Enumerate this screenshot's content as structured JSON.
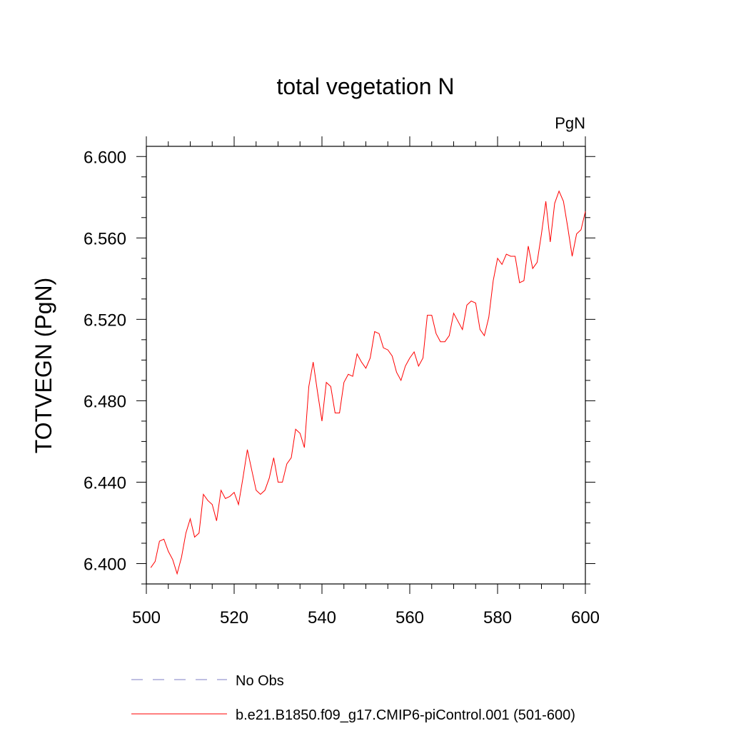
{
  "chart_data": {
    "type": "line",
    "title": "total vegetation N",
    "units_label": "PgN",
    "xlabel": "",
    "ylabel": "TOTVEGN  (PgN)",
    "xlim": [
      500,
      600
    ],
    "ylim": [
      6.39,
      6.605
    ],
    "x_ticks": [
      500,
      520,
      540,
      560,
      580,
      600
    ],
    "x_tick_labels": [
      "500",
      "520",
      "540",
      "560",
      "580",
      "600"
    ],
    "y_ticks": [
      6.4,
      6.44,
      6.48,
      6.52,
      6.56,
      6.6
    ],
    "y_tick_labels": [
      "6.400",
      "6.440",
      "6.480",
      "6.520",
      "6.560",
      "6.600"
    ],
    "series": [
      {
        "name": "b.e21.B1850.f09_g17.CMIP6-piControl.001 (501-600)",
        "color": "#ff0000",
        "dash": "solid",
        "x": [
          501,
          502,
          503,
          504,
          505,
          506,
          507,
          508,
          509,
          510,
          511,
          512,
          513,
          514,
          515,
          516,
          517,
          518,
          519,
          520,
          521,
          522,
          523,
          524,
          525,
          526,
          527,
          528,
          529,
          530,
          531,
          532,
          533,
          534,
          535,
          536,
          537,
          538,
          539,
          540,
          541,
          542,
          543,
          544,
          545,
          546,
          547,
          548,
          549,
          550,
          551,
          552,
          553,
          554,
          555,
          556,
          557,
          558,
          559,
          560,
          561,
          562,
          563,
          564,
          565,
          566,
          567,
          568,
          569,
          570,
          571,
          572,
          573,
          574,
          575,
          576,
          577,
          578,
          579,
          580,
          581,
          582,
          583,
          584,
          585,
          586,
          587,
          588,
          589,
          590,
          591,
          592,
          593,
          594,
          595,
          596,
          597,
          598,
          599,
          600
        ],
        "values": [
          6.398,
          6.401,
          6.411,
          6.412,
          6.406,
          6.402,
          6.395,
          6.403,
          6.415,
          6.422,
          6.413,
          6.415,
          6.434,
          6.431,
          6.429,
          6.421,
          6.436,
          6.432,
          6.433,
          6.435,
          6.429,
          6.442,
          6.456,
          6.446,
          6.436,
          6.434,
          6.436,
          6.442,
          6.452,
          6.44,
          6.44,
          6.449,
          6.452,
          6.466,
          6.464,
          6.457,
          6.487,
          6.499,
          6.484,
          6.47,
          6.489,
          6.487,
          6.474,
          6.474,
          6.489,
          6.493,
          6.492,
          6.503,
          6.499,
          6.496,
          6.501,
          6.514,
          6.513,
          6.506,
          6.505,
          6.502,
          6.494,
          6.49,
          6.497,
          6.501,
          6.504,
          6.497,
          6.501,
          6.522,
          6.522,
          6.513,
          6.509,
          6.509,
          6.512,
          6.523,
          6.519,
          6.515,
          6.527,
          6.529,
          6.528,
          6.515,
          6.512,
          6.521,
          6.539,
          6.55,
          6.547,
          6.552,
          6.551,
          6.551,
          6.538,
          6.539,
          6.556,
          6.545,
          6.548,
          6.562,
          6.578,
          6.558,
          6.577,
          6.583,
          6.578,
          6.565,
          6.551,
          6.562,
          6.564,
          6.573
        ]
      }
    ],
    "legend": [
      {
        "label": "No Obs",
        "color": "#7f7fc4",
        "dash": "dashed"
      },
      {
        "label": "b.e21.B1850.f09_g17.CMIP6-piControl.001 (501-600)",
        "color": "#ff0000",
        "dash": "solid"
      }
    ],
    "legend_position": "bottom"
  }
}
